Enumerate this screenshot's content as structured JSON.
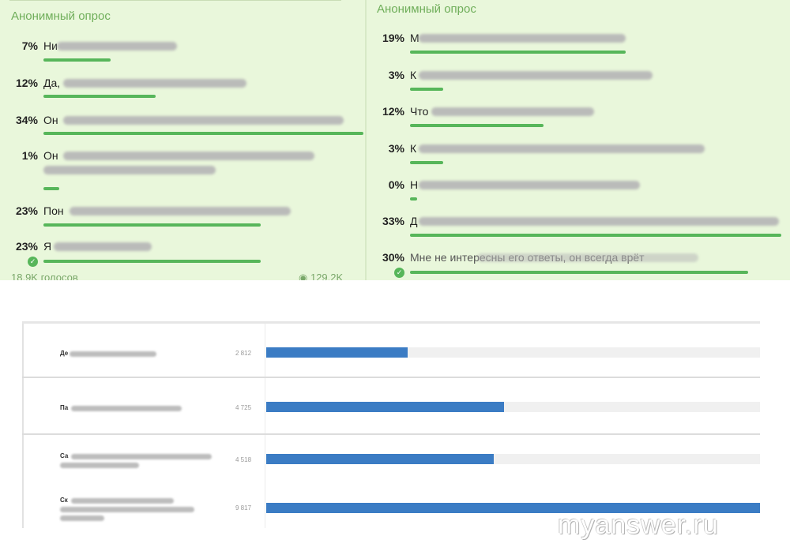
{
  "left_poll": {
    "kind": "Анонимный опрос",
    "options": [
      {
        "pct": "7%",
        "text": "Ни",
        "fraction": 0.21
      },
      {
        "pct": "12%",
        "text": "Да,",
        "fraction": 0.35
      },
      {
        "pct": "34%",
        "text": "Он",
        "fraction": 1.0
      },
      {
        "pct": "1%",
        "text": "Он",
        "fraction": 0.05
      },
      {
        "pct": "23%",
        "text": "Пон",
        "fraction": 0.68
      },
      {
        "pct": "23%",
        "text": "Я",
        "fraction": 0.68
      }
    ],
    "footer_votes": "18,9K голосов",
    "footer_views": "129,2K"
  },
  "right_poll": {
    "kind": "Анонимный опрос",
    "options": [
      {
        "pct": "19%",
        "text": "М",
        "fraction": 0.58
      },
      {
        "pct": "3%",
        "text": "К",
        "fraction": 0.09
      },
      {
        "pct": "12%",
        "text": "Что",
        "fraction": 0.36
      },
      {
        "pct": "3%",
        "text": "К",
        "fraction": 0.09
      },
      {
        "pct": "0%",
        "text": "Н",
        "fraction": 0.02
      },
      {
        "pct": "33%",
        "text": "Д",
        "fraction": 1.0
      },
      {
        "pct": "30%",
        "text": "Мне не интересны его ответы, он всегда врёт",
        "fraction": 0.91
      }
    ]
  },
  "stats": {
    "max": 9817,
    "rows": [
      {
        "name": "Де",
        "count": "2 812",
        "value": 2812
      },
      {
        "name": "Па",
        "count": "4 725",
        "value": 4725
      },
      {
        "name": "Са",
        "count": "4 518",
        "value": 4518
      },
      {
        "name": "Ск",
        "count": "9 817",
        "value": 9817
      }
    ]
  },
  "watermark": "myanswer.ru",
  "colors": {
    "poll_bg": "#e9f7db",
    "poll_bar": "#57b65a",
    "stat_bar": "#3b7cc4"
  }
}
